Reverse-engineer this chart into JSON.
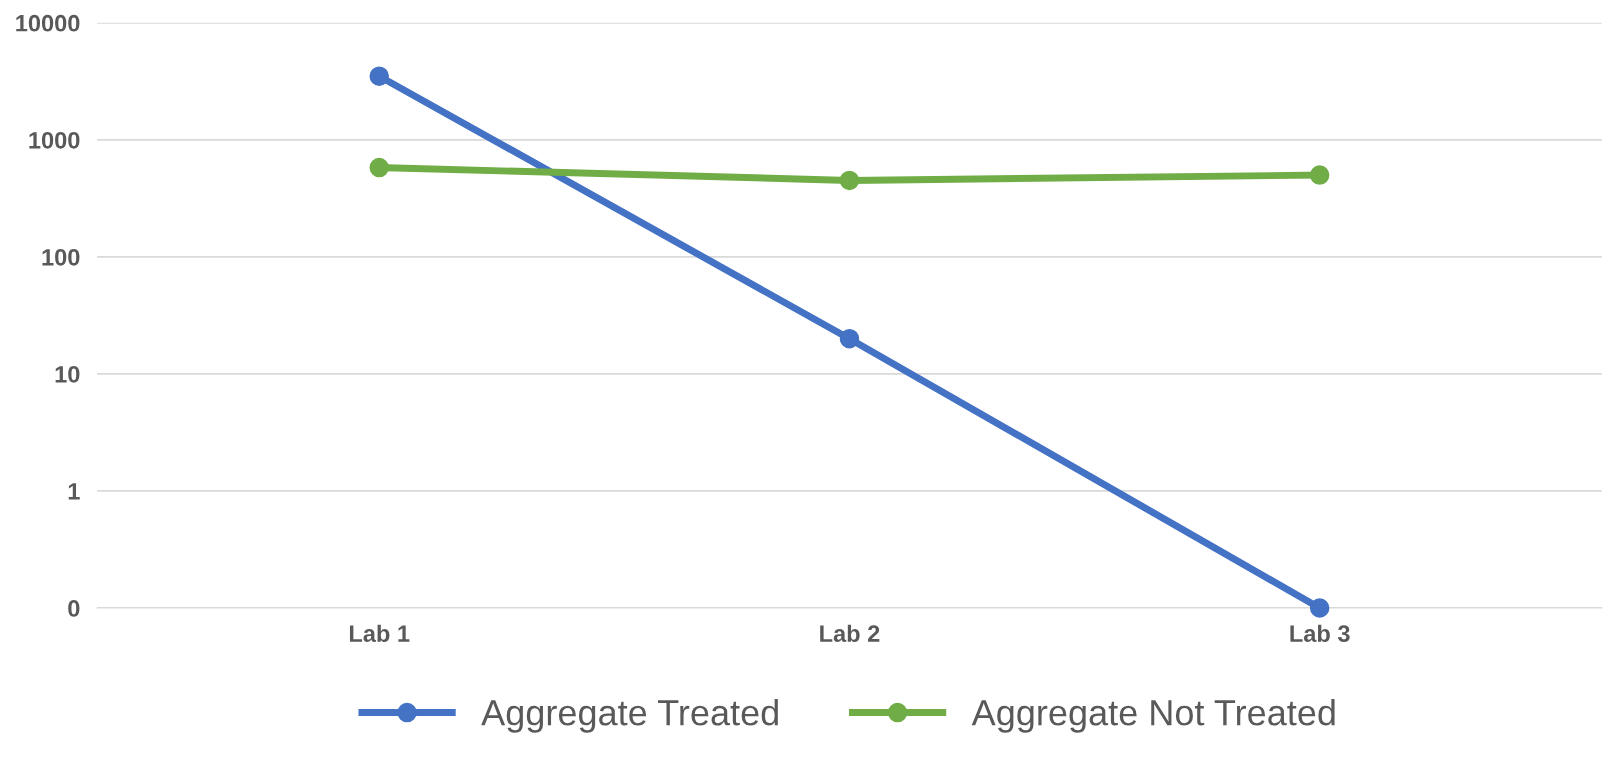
{
  "chart_data": {
    "type": "line",
    "categories": [
      "Lab 1",
      "Lab 2",
      "Lab 3"
    ],
    "series": [
      {
        "name": "Aggregate Treated",
        "color": "#4472c4",
        "values": [
          3500,
          20,
          0.1
        ]
      },
      {
        "name": "Aggregate Not Treated",
        "color": "#70ad47",
        "values": [
          580,
          450,
          500
        ]
      }
    ],
    "log": "y",
    "ylim": [
      0.1,
      10000
    ],
    "yticks": [
      {
        "value": 0.1,
        "label": "0"
      },
      1,
      10,
      100,
      1000,
      10000
    ],
    "grid": "y",
    "legend": "bottom",
    "marker": "circle",
    "line_style": "solid"
  }
}
